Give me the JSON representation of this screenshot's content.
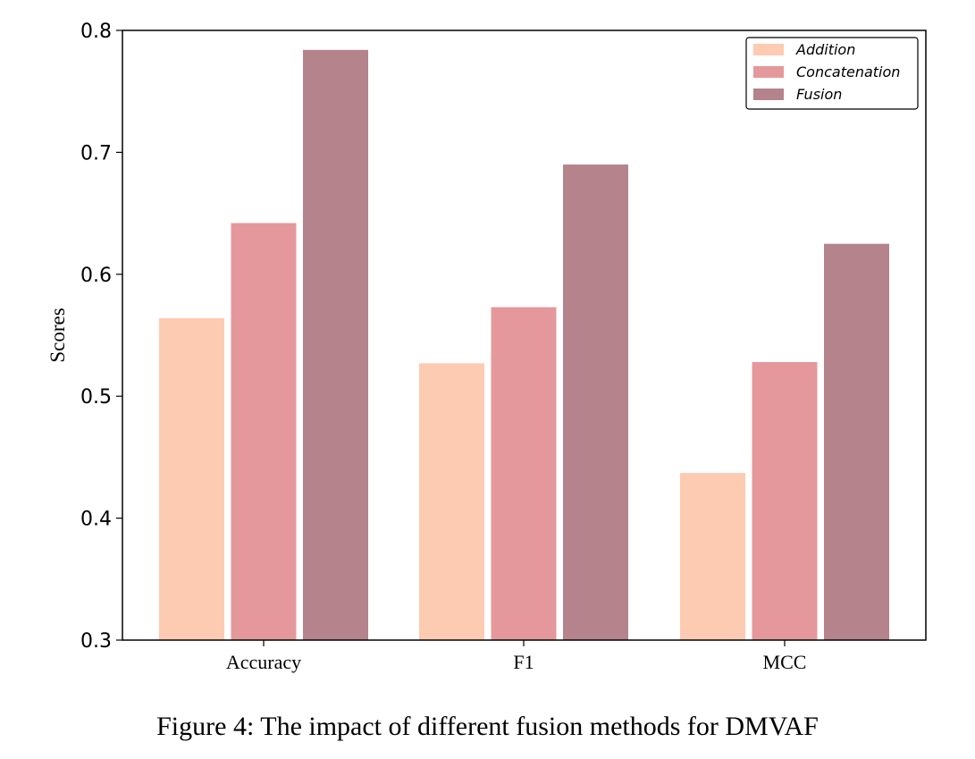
{
  "figure": {
    "caption": "Figure 4: The impact of different fusion methods for DMVAF"
  },
  "chart_data": {
    "type": "bar",
    "categories": [
      "Accuracy",
      "F1",
      "MCC"
    ],
    "series": [
      {
        "name": "Addition",
        "values": [
          0.564,
          0.527,
          0.437
        ],
        "color": "#fdcbb2"
      },
      {
        "name": "Concatenation",
        "values": [
          0.642,
          0.573,
          0.528
        ],
        "color": "#e5989b"
      },
      {
        "name": "Fusion",
        "values": [
          0.784,
          0.69,
          0.625
        ],
        "color": "#b4838c"
      }
    ],
    "ylabel": "Scores",
    "xlabel": "",
    "ylim": [
      0.3,
      0.8
    ],
    "yticks": [
      "0.3",
      "0.4",
      "0.5",
      "0.6",
      "0.7",
      "0.8"
    ],
    "grid": false,
    "legend_position": "top-right"
  }
}
